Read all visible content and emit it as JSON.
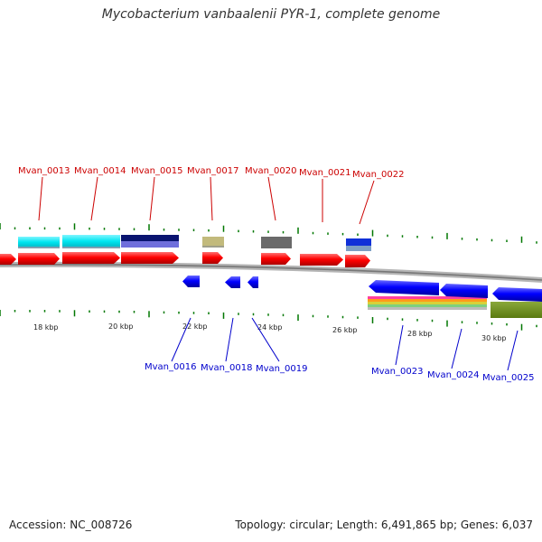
{
  "title": "Mycobacterium vanbaalenii PYR-1, complete genome",
  "footer": {
    "accession": "Accession: NC_008726",
    "topology": "Topology: circular; Length: 6,491,865 bp; Genes: 6,037"
  },
  "colors": {
    "forward_gene": "#ff0000",
    "reverse_gene": "#0000ff",
    "forward_label": "#cc0000",
    "reverse_label": "#0000cc",
    "tick": "#007700",
    "backbone": "#888888"
  },
  "kbp_labels": [
    "18 kbp",
    "20 kbp",
    "22 kbp",
    "24 kbp",
    "26 kbp",
    "28 kbp",
    "30 kbp"
  ],
  "forward_genes": [
    {
      "label": "Mvan_0013"
    },
    {
      "label": "Mvan_0014"
    },
    {
      "label": "Mvan_0015"
    },
    {
      "label": "Mvan_0017"
    },
    {
      "label": "Mvan_0020"
    },
    {
      "label": "Mvan_0021"
    },
    {
      "label": "Mvan_0022"
    }
  ],
  "reverse_genes": [
    {
      "label": "Mvan_0016"
    },
    {
      "label": "Mvan_0018"
    },
    {
      "label": "Mvan_0019"
    },
    {
      "label": "Mvan_0023"
    },
    {
      "label": "Mvan_0024"
    },
    {
      "label": "Mvan_0025"
    }
  ]
}
